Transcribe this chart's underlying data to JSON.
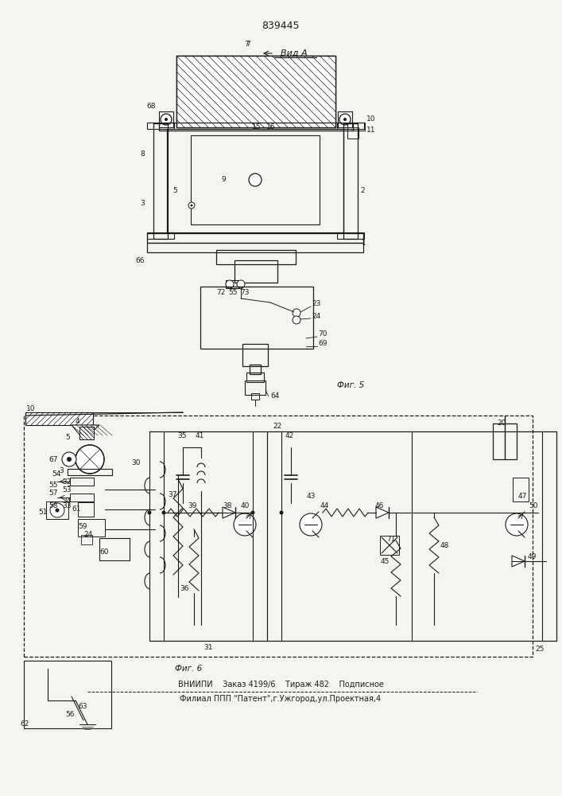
{
  "title": "839445",
  "fig5_label": "Фиг. 5",
  "fig6_label": "Фиг. 6",
  "vid_a_label": "Вид А",
  "footer_line1": "ВНИИПИ    Заказ 4199/6    Тираж 482    Подписное",
  "footer_line2": "Филиал ППП \"Патент\",г.Ужгород,ул.Проектная,4",
  "bg_color": "#f5f5f0",
  "line_color": "#1a1a1a"
}
